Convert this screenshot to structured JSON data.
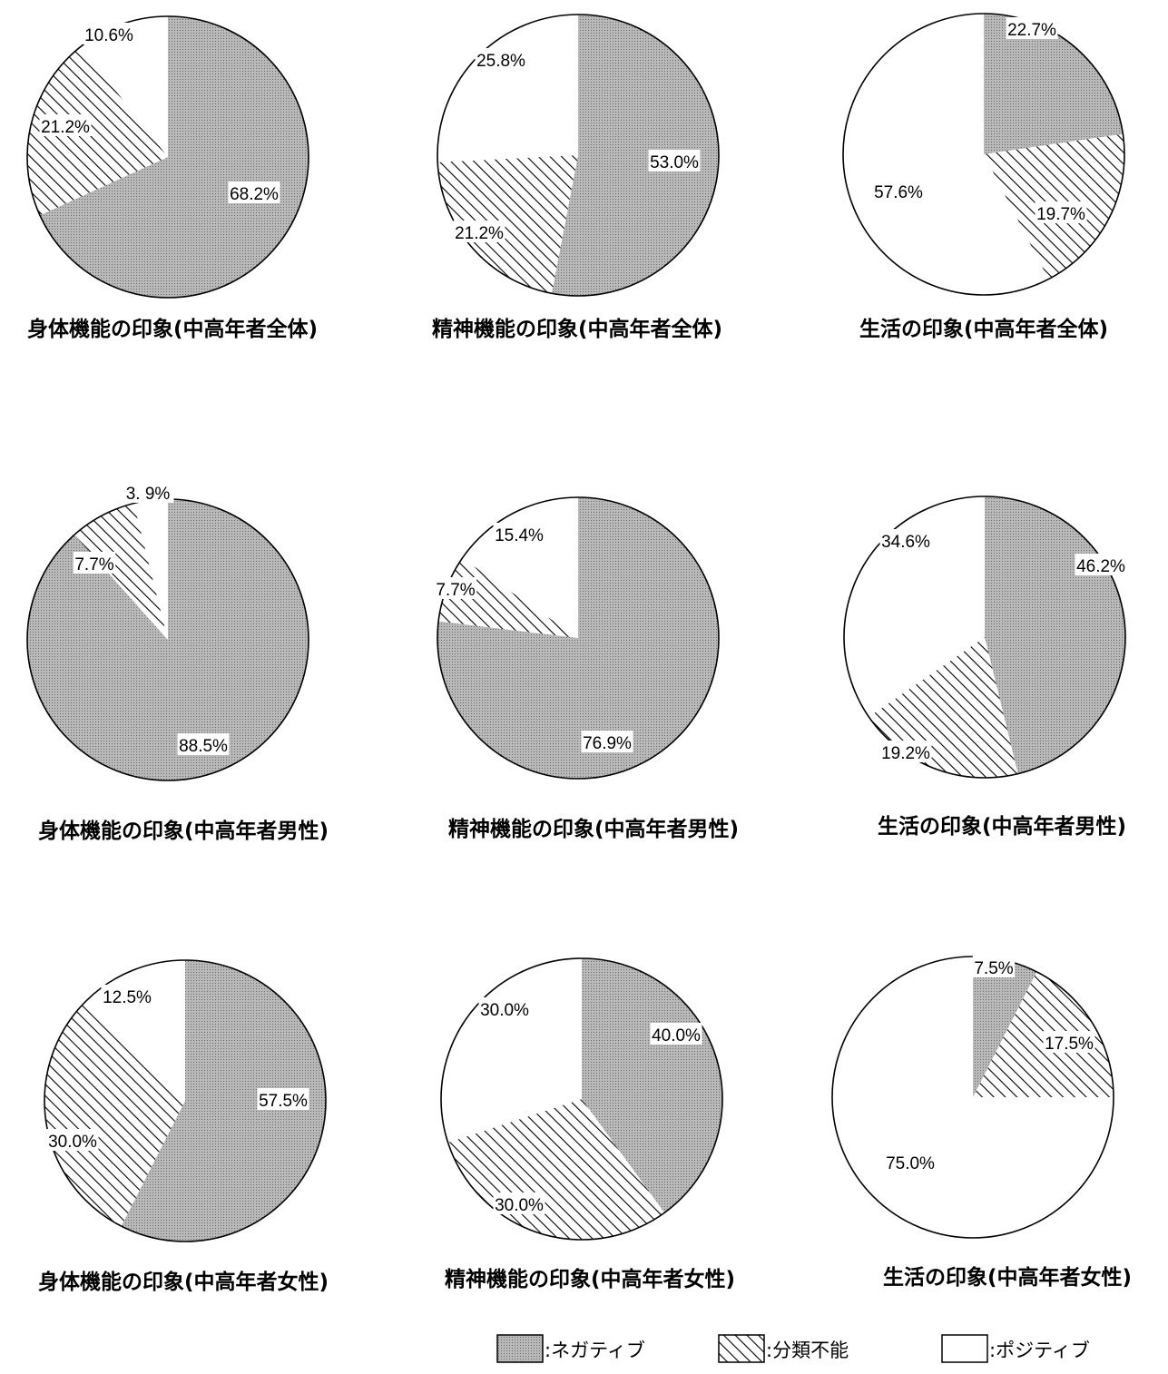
{
  "legend": [
    {
      "key": "negative",
      "label": ":ネガティブ"
    },
    {
      "key": "unclassifiable",
      "label": ":分類不能"
    },
    {
      "key": "positive",
      "label": ":ポジティブ"
    }
  ],
  "colors": {
    "negative_fill": "#b9b9b9",
    "hatch_stroke": "#000000",
    "positive_fill": "#ffffff",
    "outline": "#000000"
  },
  "chart_data": [
    {
      "type": "pie",
      "title": "身体機能の印象(中高年者全体)",
      "slices": [
        {
          "category": "negative",
          "value": 68.2,
          "label": "68.2%"
        },
        {
          "category": "unclassifiable",
          "value": 21.2,
          "label": "21.2%"
        },
        {
          "category": "positive",
          "value": 10.6,
          "label": "10.6%"
        }
      ]
    },
    {
      "type": "pie",
      "title": "精神機能の印象(中高年者全体)",
      "slices": [
        {
          "category": "negative",
          "value": 53.0,
          "label": "53.0%"
        },
        {
          "category": "unclassifiable",
          "value": 21.2,
          "label": "21.2%"
        },
        {
          "category": "positive",
          "value": 25.8,
          "label": "25.8%"
        }
      ]
    },
    {
      "type": "pie",
      "title": "生活の印象(中高年者全体)",
      "slices": [
        {
          "category": "negative",
          "value": 22.7,
          "label": "22.7%"
        },
        {
          "category": "unclassifiable",
          "value": 19.7,
          "label": "19.7%"
        },
        {
          "category": "positive",
          "value": 57.6,
          "label": "57.6%"
        }
      ]
    },
    {
      "type": "pie",
      "title": "身体機能の印象(中高年者男性)",
      "slices": [
        {
          "category": "negative",
          "value": 88.5,
          "label": "88.5%"
        },
        {
          "category": "unclassifiable",
          "value": 7.7,
          "label": "7.7%"
        },
        {
          "category": "positive",
          "value": 3.9,
          "label": "3. 9%"
        }
      ]
    },
    {
      "type": "pie",
      "title": "精神機能の印象(中高年者男性)",
      "slices": [
        {
          "category": "negative",
          "value": 76.9,
          "label": "76.9%"
        },
        {
          "category": "unclassifiable",
          "value": 7.7,
          "label": "7.7%"
        },
        {
          "category": "positive",
          "value": 15.4,
          "label": "15.4%"
        }
      ]
    },
    {
      "type": "pie",
      "title": "生活の印象(中高年者男性)",
      "slices": [
        {
          "category": "negative",
          "value": 46.2,
          "label": "46.2%"
        },
        {
          "category": "unclassifiable",
          "value": 19.2,
          "label": "19.2%"
        },
        {
          "category": "positive",
          "value": 34.6,
          "label": "34.6%"
        }
      ]
    },
    {
      "type": "pie",
      "title": "身体機能の印象(中高年者女性)",
      "slices": [
        {
          "category": "negative",
          "value": 57.5,
          "label": "57.5%"
        },
        {
          "category": "unclassifiable",
          "value": 30.0,
          "label": "30.0%"
        },
        {
          "category": "positive",
          "value": 12.5,
          "label": "12.5%"
        }
      ]
    },
    {
      "type": "pie",
      "title": "精神機能の印象(中高年者女性)",
      "slices": [
        {
          "category": "negative",
          "value": 40.0,
          "label": "40.0%"
        },
        {
          "category": "unclassifiable",
          "value": 30.0,
          "label": "30.0%"
        },
        {
          "category": "positive",
          "value": 30.0,
          "label": "30.0%"
        }
      ]
    },
    {
      "type": "pie",
      "title": "生活の印象(中高年者女性)",
      "slices": [
        {
          "category": "negative",
          "value": 7.5,
          "label": "7.5%"
        },
        {
          "category": "unclassifiable",
          "value": 17.5,
          "label": "17.5%"
        },
        {
          "category": "positive",
          "value": 75.0,
          "label": "75.0%"
        }
      ]
    }
  ]
}
